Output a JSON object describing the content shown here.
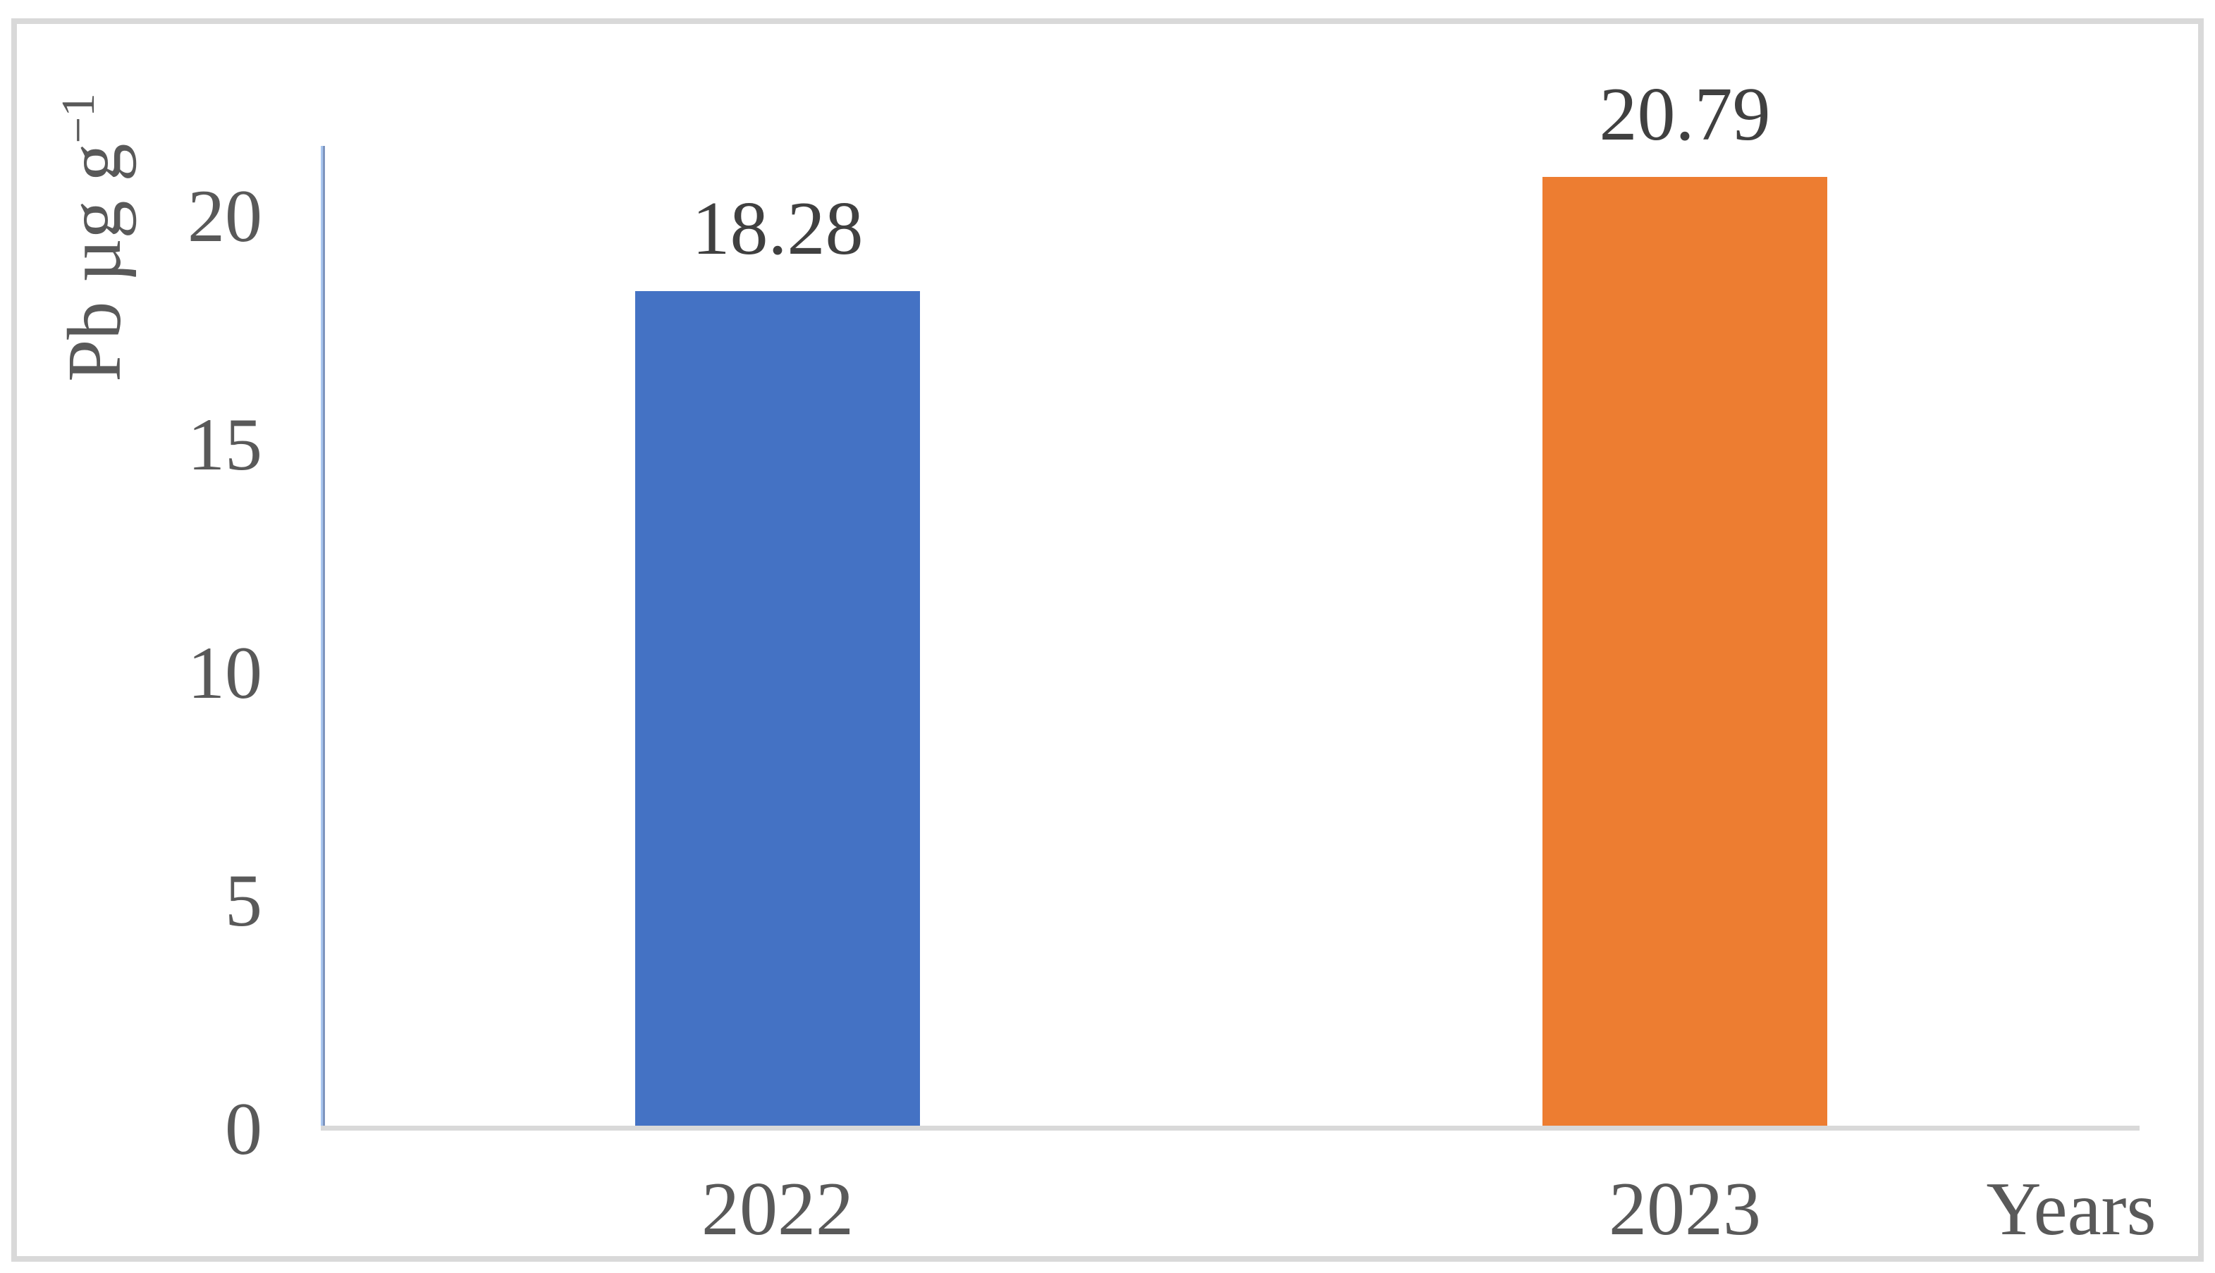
{
  "chart_data": {
    "type": "bar",
    "title": "",
    "categories": [
      "2022",
      "2023"
    ],
    "values": [
      18.28,
      20.79
    ],
    "data_labels": [
      "18.28",
      "20.79"
    ],
    "xlabel": "Years",
    "ylabel": "Pb µg g⁻¹",
    "ylabel_base": "Pb µg g",
    "ylabel_sup": "−1",
    "yticks": [
      0,
      5,
      10,
      15,
      20
    ],
    "ylim": [
      0,
      21.5
    ],
    "bar_colors": [
      "#4472C4",
      "#ED7D31"
    ],
    "grid": false,
    "legend": "none",
    "colors": {
      "y_axis_line": "#9DB6E3",
      "x_axis_line": "#D9D9D9",
      "frame_border": "#D9D9D9",
      "value_label_text": "#404040",
      "axis_text": "#595959",
      "background": "#FFFFFF"
    }
  }
}
